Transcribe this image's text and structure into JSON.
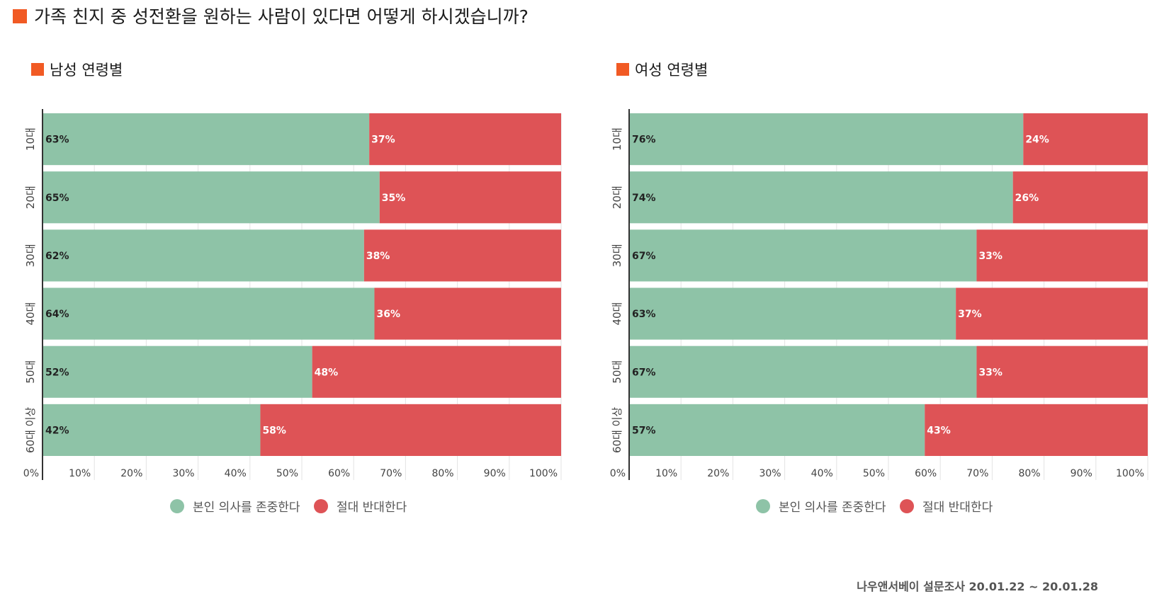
{
  "title": "가족 친지 중 성전환을 원하는 사람이 있다면 어떻게 하시겠습니까?",
  "source": "나우앤서베이 설문조사 20.01.22 ~ 20.01.28",
  "colors": {
    "accent": "#f15a24",
    "respect": "#8ec3a7",
    "oppose": "#de5356"
  },
  "legend": {
    "respect": "본인 의사를 존중한다",
    "oppose": "절대 반대한다"
  },
  "chart_data": [
    {
      "type": "bar",
      "orientation": "horizontal",
      "stacked": true,
      "title": "남성 연령별",
      "categories": [
        "10대",
        "20대",
        "30대",
        "40대",
        "50대",
        "60대 이상"
      ],
      "series": [
        {
          "name": "본인 의사를 존중한다",
          "values": [
            63,
            65,
            62,
            64,
            52,
            42
          ]
        },
        {
          "name": "절대 반대한다",
          "values": [
            37,
            35,
            38,
            36,
            48,
            58
          ]
        }
      ],
      "xlim": [
        0,
        100
      ],
      "ticks": [
        "0%",
        "10%",
        "20%",
        "30%",
        "40%",
        "50%",
        "60%",
        "70%",
        "80%",
        "90%",
        "100%"
      ],
      "grid": true,
      "legend_position": "bottom"
    },
    {
      "type": "bar",
      "orientation": "horizontal",
      "stacked": true,
      "title": "여성 연령별",
      "categories": [
        "10대",
        "20대",
        "30대",
        "40대",
        "50대",
        "60대 이상"
      ],
      "series": [
        {
          "name": "본인 의사를 존중한다",
          "values": [
            76,
            74,
            67,
            63,
            67,
            57
          ]
        },
        {
          "name": "절대 반대한다",
          "values": [
            24,
            26,
            33,
            37,
            33,
            43
          ]
        }
      ],
      "xlim": [
        0,
        100
      ],
      "ticks": [
        "0%",
        "10%",
        "20%",
        "30%",
        "40%",
        "50%",
        "60%",
        "70%",
        "80%",
        "90%",
        "100%"
      ],
      "grid": true,
      "legend_position": "bottom"
    }
  ]
}
